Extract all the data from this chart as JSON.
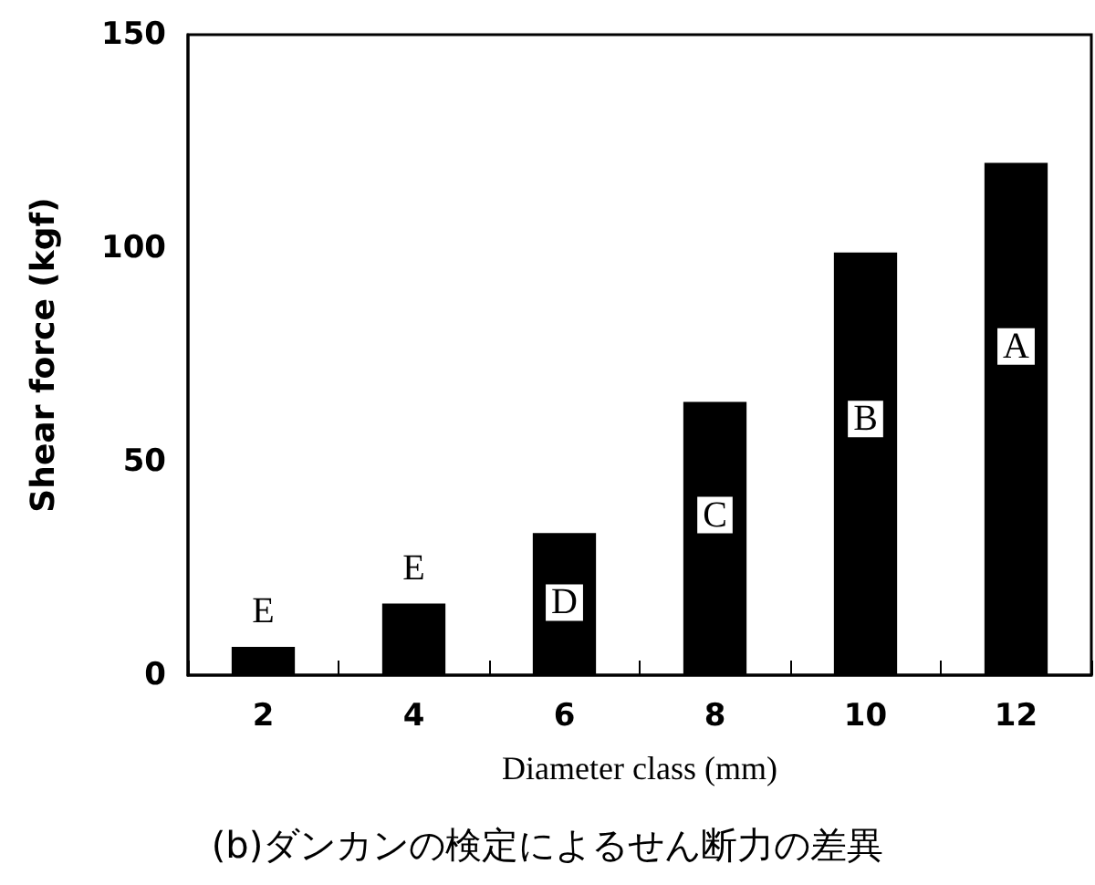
{
  "chart_data": {
    "type": "bar",
    "xlabel": "Diameter class (mm)",
    "ylabel": "Shear force (kgf)",
    "categories": [
      "2",
      "4",
      "6",
      "8",
      "10",
      "12"
    ],
    "values": [
      6.6,
      16.8,
      33.3,
      64,
      99,
      120
    ],
    "color": "#000000",
    "ylim": [
      0,
      150
    ],
    "yticks": [
      0,
      50,
      100,
      150
    ],
    "grid": false,
    "annotations": [
      {
        "text": "E",
        "x": "2",
        "y": 15
      },
      {
        "text": "E",
        "x": "4",
        "y": 25
      },
      {
        "text": "D",
        "x": "6",
        "y": 17
      },
      {
        "text": "C",
        "x": "8",
        "y": 37.5
      },
      {
        "text": "B",
        "x": "10",
        "y": 60
      },
      {
        "text": "A",
        "x": "12",
        "y": 77
      },
      "(b)ダンカンの検定によるせん断力の差異"
    ]
  }
}
